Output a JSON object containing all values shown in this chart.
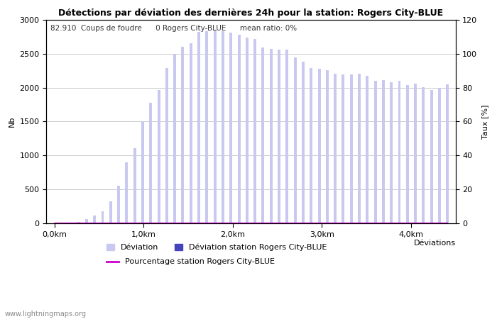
{
  "title": "Détections par déviation des dernières 24h pour la station: Rogers City-BLUE",
  "subtitle": "82.910  Coups de foudre      0 Rogers City-BLUE      mean ratio: 0%",
  "xlabel": "Déviations",
  "ylabel_left": "Nb",
  "ylabel_right": "Taux [%]",
  "bar_color_light": "#c8c8f0",
  "bar_color_dark": "#4444bb",
  "line_color": "#cc00cc",
  "background_color": "#ffffff",
  "grid_color": "#aaaaaa",
  "watermark": "www.lightningmaps.org",
  "ylim_left": [
    0,
    3000
  ],
  "ylim_right": [
    0,
    120
  ],
  "yticks_left": [
    0,
    500,
    1000,
    1500,
    2000,
    2500,
    3000
  ],
  "yticks_right": [
    0,
    20,
    40,
    60,
    80,
    100,
    120
  ],
  "xtick_labels": [
    "0,0km",
    "1,0km",
    "2,0km",
    "3,0km",
    "4,0km"
  ],
  "bar_values": [
    5,
    10,
    15,
    30,
    70,
    120,
    180,
    330,
    560,
    900,
    1110,
    1490,
    1780,
    1960,
    2290,
    2500,
    2600,
    2650,
    2820,
    2830,
    2840,
    2830,
    2810,
    2780,
    2730,
    2710,
    2590,
    2570,
    2560,
    2560,
    2440,
    2380,
    2290,
    2280,
    2260,
    2200,
    2190,
    2190,
    2200,
    2170,
    2100,
    2110,
    2080,
    2100,
    2040,
    2060,
    2010,
    1960,
    2000,
    2050
  ],
  "station_bar_values": [
    0,
    0,
    0,
    0,
    0,
    0,
    0,
    0,
    0,
    0,
    0,
    0,
    0,
    0,
    0,
    0,
    0,
    0,
    0,
    0,
    0,
    0,
    0,
    0,
    0,
    0,
    0,
    0,
    0,
    0,
    0,
    0,
    0,
    0,
    0,
    0,
    0,
    0,
    0,
    0,
    0,
    0,
    0,
    0,
    0,
    0,
    0,
    0,
    0,
    0
  ],
  "legend_deviation": "Déviation",
  "legend_station": "Déviation station Rogers City-BLUE",
  "legend_percentage": "Pourcentage station Rogers City-BLUE"
}
